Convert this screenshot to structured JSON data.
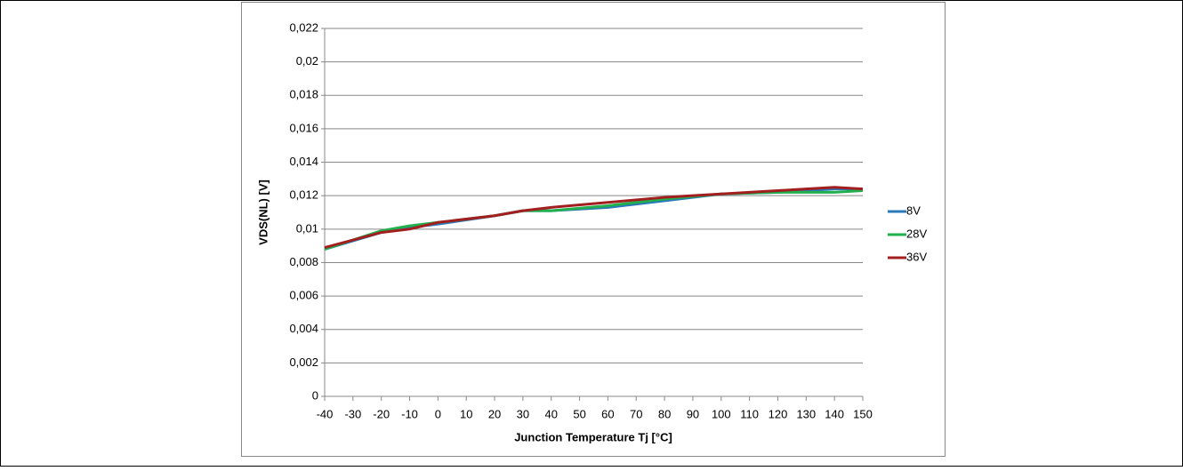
{
  "chart_data": {
    "type": "line",
    "x_label": "Junction Temperature Tj [°C]",
    "y_label": "VDS(NL) [V]",
    "x": [
      -40,
      -20,
      -10,
      0,
      20,
      30,
      40,
      60,
      80,
      100,
      120,
      130,
      140,
      150
    ],
    "series": [
      {
        "name": "8V",
        "color": "#2a78b8",
        "values": [
          0.0088,
          0.0098,
          0.0101,
          0.0103,
          0.0108,
          0.0111,
          0.0111,
          0.0113,
          0.0117,
          0.0121,
          0.0122,
          0.0123,
          0.0124,
          0.0124
        ]
      },
      {
        "name": "28V",
        "color": "#22b04e",
        "values": [
          0.0088,
          0.0099,
          0.0102,
          0.0104,
          0.0108,
          0.0111,
          0.0111,
          0.0114,
          0.0118,
          0.0121,
          0.0122,
          0.0122,
          0.0122,
          0.0123
        ]
      },
      {
        "name": "36V",
        "color": "#a31f1f",
        "values": [
          0.0089,
          0.0098,
          0.01,
          0.0104,
          0.0108,
          0.0111,
          0.0113,
          0.0116,
          0.0119,
          0.0121,
          0.0123,
          0.0124,
          0.0125,
          0.0124
        ]
      }
    ],
    "xlim": [
      -40,
      150
    ],
    "xticks": [
      -40,
      -30,
      -20,
      -10,
      0,
      10,
      20,
      30,
      40,
      50,
      60,
      70,
      80,
      90,
      100,
      110,
      120,
      130,
      140,
      150
    ],
    "ylim": [
      0,
      0.022
    ],
    "yticks": [
      0,
      {
        "value": 0.002,
        "label": "0,002"
      },
      {
        "value": 0.004,
        "label": "0,004"
      },
      {
        "value": 0.006,
        "label": "0,006"
      },
      {
        "value": 0.008,
        "label": "0,008"
      },
      {
        "value": 0.01,
        "label": "0,01"
      },
      {
        "value": 0.012,
        "label": "0,012"
      },
      {
        "value": 0.014,
        "label": "0,014"
      },
      {
        "value": 0.016,
        "label": "0,016"
      },
      {
        "value": 0.018,
        "label": "0,018"
      },
      {
        "value": 0.02,
        "label": "0,02"
      },
      {
        "value": 0.022,
        "label": "0,022"
      }
    ],
    "grid": true,
    "legend": "right"
  }
}
